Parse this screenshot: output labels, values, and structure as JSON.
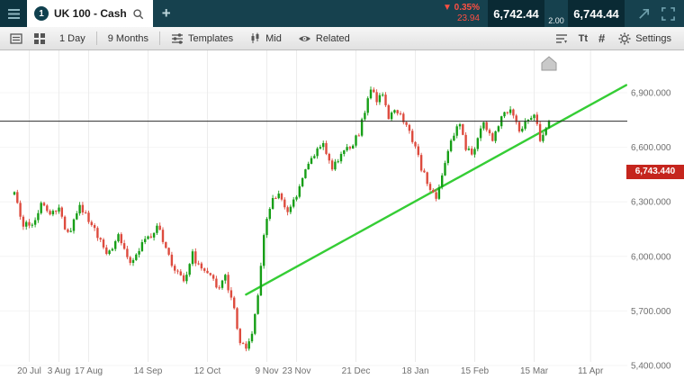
{
  "header": {
    "badge": "1",
    "instrument": "UK 100 - Cash",
    "add_tab": "+",
    "change_pct": "▼ 0.35%",
    "change_abs": "23.94",
    "sell": "6,742.44",
    "spread": "2.00",
    "buy": "6,744.44"
  },
  "toolbar": {
    "timeframe": "1 Day",
    "range": "9 Months",
    "templates": "Templates",
    "price_type": "Mid",
    "related": "Related",
    "text_tool": "Tt",
    "hash": "#",
    "settings": "Settings"
  },
  "chart_data": {
    "type": "candlestick",
    "title": "UK 100 - Cash, 1 Day, 9 Months",
    "current_price": 6743.44,
    "current_price_label": "6,743.440",
    "y_ticks": [
      {
        "label": "6,900.000",
        "value": 6900
      },
      {
        "label": "6,600.000",
        "value": 6600
      },
      {
        "label": "6,300.000",
        "value": 6300
      },
      {
        "label": "6,000.000",
        "value": 6000
      },
      {
        "label": "5,700.000",
        "value": 5700
      },
      {
        "label": "5,400.000",
        "value": 5400
      }
    ],
    "x_ticks": [
      {
        "label": "20 Jul",
        "day": 5
      },
      {
        "label": "3 Aug",
        "day": 15
      },
      {
        "label": "17 Aug",
        "day": 25
      },
      {
        "label": "14 Sep",
        "day": 45
      },
      {
        "label": "12 Oct",
        "day": 65
      },
      {
        "label": "9 Nov",
        "day": 85
      },
      {
        "label": "23 Nov",
        "day": 95
      },
      {
        "label": "21 Dec",
        "day": 115
      },
      {
        "label": "18 Jan",
        "day": 135
      },
      {
        "label": "15 Feb",
        "day": 155
      },
      {
        "label": "15 Mar",
        "day": 175
      },
      {
        "label": "11 Apr",
        "day": 194
      }
    ],
    "num_candles": 181,
    "anchors": [
      [
        0,
        6340
      ],
      [
        3,
        6180
      ],
      [
        6,
        6170
      ],
      [
        9,
        6300
      ],
      [
        12,
        6230
      ],
      [
        15,
        6260
      ],
      [
        18,
        6120
      ],
      [
        22,
        6270
      ],
      [
        27,
        6150
      ],
      [
        31,
        6000
      ],
      [
        35,
        6120
      ],
      [
        39,
        5960
      ],
      [
        43,
        6060
      ],
      [
        46,
        6110
      ],
      [
        48,
        6170
      ],
      [
        53,
        5960
      ],
      [
        57,
        5870
      ],
      [
        60,
        6010
      ],
      [
        63,
        5920
      ],
      [
        66,
        5890
      ],
      [
        69,
        5820
      ],
      [
        71,
        5900
      ],
      [
        74,
        5700
      ],
      [
        76,
        5530
      ],
      [
        78,
        5480
      ],
      [
        80,
        5570
      ],
      [
        82,
        5800
      ],
      [
        84,
        6100
      ],
      [
        86,
        6280
      ],
      [
        89,
        6350
      ],
      [
        92,
        6240
      ],
      [
        95,
        6330
      ],
      [
        98,
        6460
      ],
      [
        101,
        6560
      ],
      [
        104,
        6610
      ],
      [
        107,
        6480
      ],
      [
        110,
        6560
      ],
      [
        113,
        6600
      ],
      [
        116,
        6680
      ],
      [
        118,
        6800
      ],
      [
        120,
        6930
      ],
      [
        122,
        6860
      ],
      [
        124,
        6900
      ],
      [
        126,
        6760
      ],
      [
        128,
        6820
      ],
      [
        131,
        6740
      ],
      [
        134,
        6640
      ],
      [
        137,
        6490
      ],
      [
        140,
        6380
      ],
      [
        142,
        6330
      ],
      [
        145,
        6500
      ],
      [
        148,
        6680
      ],
      [
        150,
        6720
      ],
      [
        152,
        6600
      ],
      [
        154,
        6560
      ],
      [
        156,
        6650
      ],
      [
        158,
        6720
      ],
      [
        161,
        6650
      ],
      [
        164,
        6760
      ],
      [
        167,
        6810
      ],
      [
        170,
        6700
      ],
      [
        173,
        6760
      ],
      [
        175,
        6780
      ],
      [
        177,
        6640
      ],
      [
        179,
        6710
      ],
      [
        180,
        6743.44
      ]
    ],
    "trendline": {
      "start_day": 78,
      "start_price": 5790,
      "end_day": 206,
      "end_price": 6942,
      "color": "#35cd35"
    },
    "colors": {
      "up": "#169e16",
      "down": "#dd4b3e",
      "current_line": "#2b2b2b",
      "tag_bg": "#c5251d"
    },
    "price_range": [
      5400,
      6900
    ],
    "legend": "none",
    "grid": "faint vertical date gridlines"
  }
}
